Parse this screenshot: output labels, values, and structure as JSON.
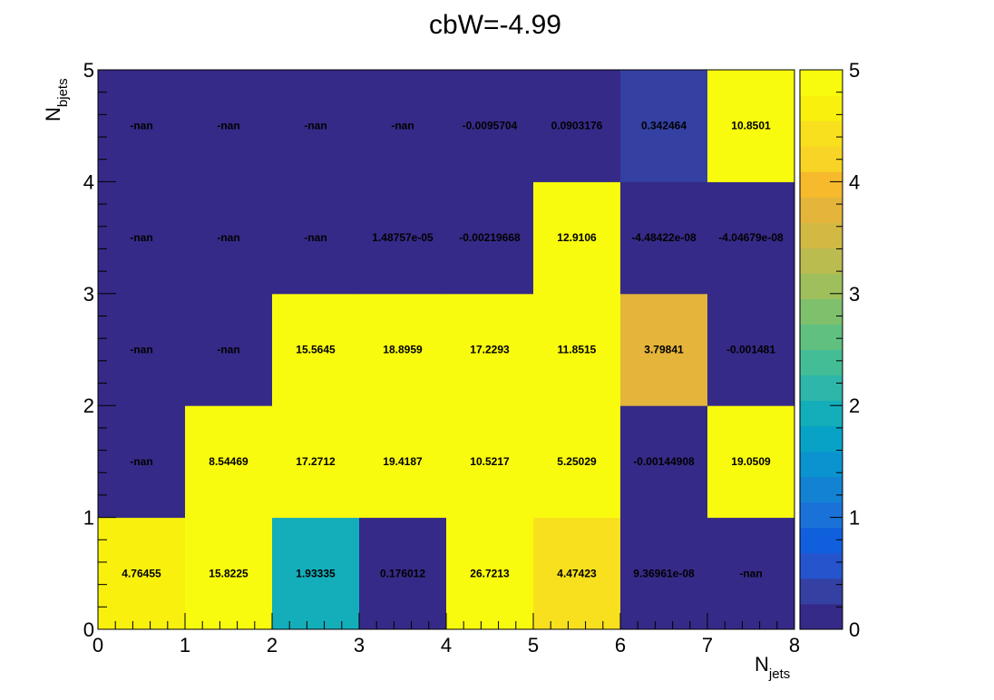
{
  "chart_data": {
    "type": "heatmap",
    "title": "cbW=-4.99",
    "xlabel": {
      "main": "N",
      "sub": "jets"
    },
    "ylabel": {
      "main": "N",
      "sub": "bjets"
    },
    "xlim": [
      0,
      8
    ],
    "ylim": [
      0,
      5
    ],
    "zlim": [
      0,
      5
    ],
    "x_ticks": [
      "0",
      "1",
      "2",
      "3",
      "4",
      "5",
      "6",
      "7",
      "8"
    ],
    "y_ticks": [
      "0",
      "1",
      "2",
      "3",
      "4",
      "5"
    ],
    "z_ticks": [
      "0",
      "1",
      "2",
      "3",
      "4",
      "5"
    ],
    "nan_color": "#352a87",
    "palette": [
      "#352a87",
      "#3440a2",
      "#2554cc",
      "#1060de",
      "#1a72d9",
      "#1382d3",
      "#0a93cf",
      "#08a2c7",
      "#14aebb",
      "#2db6a9",
      "#43bd95",
      "#60c080",
      "#7fc06d",
      "#9ebf5c",
      "#bbbc4f",
      "#d2b944",
      "#e5b43a",
      "#f6ba2c",
      "#f7d425",
      "#f8e01e",
      "#f9f00e",
      "#f9fb0e"
    ],
    "rows": [
      {
        "y": 0.5,
        "labels": [
          "4.76455",
          "15.8225",
          "1.93335",
          "0.176012",
          "26.7213",
          "4.47423",
          "9.36961e-08",
          "-nan"
        ],
        "values": [
          4.76455,
          15.8225,
          1.93335,
          0.176012,
          26.7213,
          4.47423,
          9.36961e-08,
          null
        ]
      },
      {
        "y": 1.5,
        "labels": [
          "-nan",
          "8.54469",
          "17.2712",
          "19.4187",
          "10.5217",
          "5.25029",
          "-0.00144908",
          "19.0509"
        ],
        "values": [
          null,
          8.54469,
          17.2712,
          19.4187,
          10.5217,
          5.25029,
          -0.00144908,
          19.0509
        ]
      },
      {
        "y": 2.5,
        "labels": [
          "-nan",
          "-nan",
          "15.5645",
          "18.8959",
          "17.2293",
          "11.8515",
          "3.79841",
          "-0.001481"
        ],
        "values": [
          null,
          null,
          15.5645,
          18.8959,
          17.2293,
          11.8515,
          3.79841,
          -0.001481
        ]
      },
      {
        "y": 3.5,
        "labels": [
          "-nan",
          "-nan",
          "-nan",
          "1.48757e-05",
          "-0.00219668",
          "12.9106",
          "-4.48422e-08",
          "-4.04679e-08"
        ],
        "values": [
          null,
          null,
          null,
          1.48757e-05,
          -0.00219668,
          12.9106,
          -4.48422e-08,
          -4.04679e-08
        ]
      },
      {
        "y": 4.5,
        "labels": [
          "-nan",
          "-nan",
          "-nan",
          "-nan",
          "-0.0095704",
          "0.0903176",
          "0.342464",
          "10.8501"
        ],
        "values": [
          null,
          null,
          null,
          null,
          -0.0095704,
          0.0903176,
          0.342464,
          10.8501
        ]
      }
    ]
  }
}
